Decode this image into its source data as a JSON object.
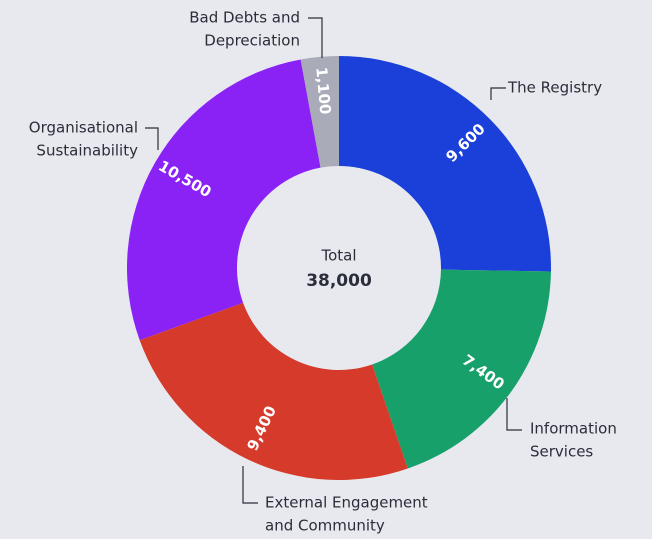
{
  "chart_data": {
    "type": "donut",
    "categories": [
      [
        "The Registry"
      ],
      [
        "Information",
        "Services"
      ],
      [
        "External Engagement",
        "and Community"
      ],
      [
        "Organisational",
        "Sustainability"
      ],
      [
        "Bad Debts and",
        "Depreciation"
      ]
    ],
    "values": [
      9600,
      7400,
      9400,
      10500,
      1100
    ],
    "value_labels": [
      "9,600",
      "7,400",
      "9,400",
      "10,500",
      "1,100"
    ],
    "colors": [
      "#1b3fd9",
      "#17a06a",
      "#d63a2a",
      "#8a22f5",
      "#a9abb8"
    ],
    "center_label": "Total",
    "center_value": "38,000"
  }
}
